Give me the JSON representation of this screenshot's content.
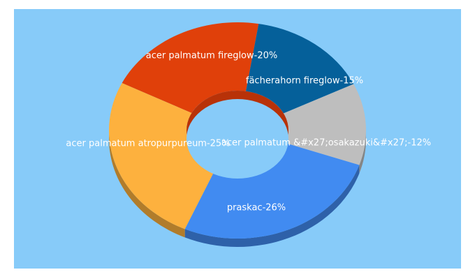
{
  "chart_data": {
    "type": "pie",
    "style": "3d-donut",
    "background_color": "#87CBF9",
    "slices": [
      {
        "label": "acer palmatum fireglow-20%",
        "value": 20,
        "color": "#E0400A"
      },
      {
        "label": "fächerahorn fireglow-15%",
        "value": 15,
        "color": "#05609A"
      },
      {
        "label": "acer palmatum &#x27;osakazuki&#x27;-12%",
        "value": 12,
        "color": "#BEBEBE"
      },
      {
        "label": "praskac-26%",
        "value": 26,
        "color": "#418BF1"
      },
      {
        "label": "acer palmatum atropurpureum-25%",
        "value": 25,
        "color": "#FDB13E"
      }
    ]
  }
}
